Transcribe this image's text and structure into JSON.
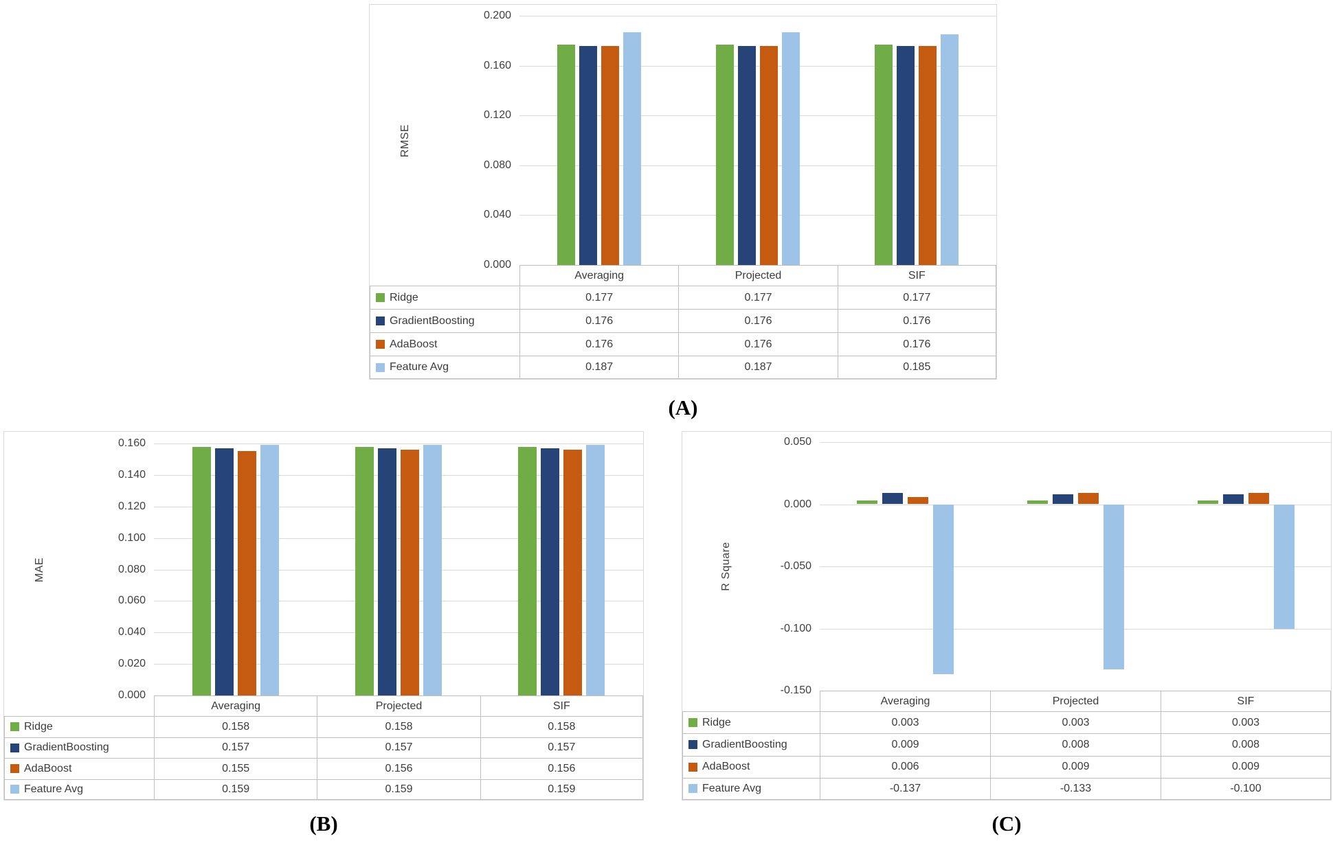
{
  "figure": {
    "panel_count": 3,
    "background": "#FFFFFF"
  },
  "chart_data": [
    {
      "id": "A",
      "type": "bar",
      "panel_label": "(A)",
      "ylabel": "RMSE",
      "ylim": [
        0.0,
        0.2
      ],
      "grid": true,
      "legend_position": "table-left",
      "categories": [
        "Averaging",
        "Projected",
        "SIF"
      ],
      "yticks": [
        {
          "value": 0.0,
          "label": "0.000"
        },
        {
          "value": 0.04,
          "label": "0.040"
        },
        {
          "value": 0.08,
          "label": "0.080"
        },
        {
          "value": 0.12,
          "label": "0.120"
        },
        {
          "value": 0.16,
          "label": "0.160"
        },
        {
          "value": 0.2,
          "label": "0.200"
        }
      ],
      "series": [
        {
          "name": "Ridge",
          "color": "#70AD47",
          "values": [
            0.177,
            0.177,
            0.177
          ]
        },
        {
          "name": "GradientBoosting",
          "color": "#264478",
          "values": [
            0.176,
            0.176,
            0.176
          ]
        },
        {
          "name": "AdaBoost",
          "color": "#C55A11",
          "values": [
            0.176,
            0.176,
            0.176
          ]
        },
        {
          "name": "Feature Avg",
          "color": "#9DC3E6",
          "values": [
            0.187,
            0.187,
            0.185
          ]
        }
      ]
    },
    {
      "id": "B",
      "type": "bar",
      "panel_label": "(B)",
      "ylabel": "MAE",
      "ylim": [
        0.0,
        0.16
      ],
      "grid": true,
      "legend_position": "table-left",
      "categories": [
        "Averaging",
        "Projected",
        "SIF"
      ],
      "yticks": [
        {
          "value": 0.0,
          "label": "0.000"
        },
        {
          "value": 0.02,
          "label": "0.020"
        },
        {
          "value": 0.04,
          "label": "0.040"
        },
        {
          "value": 0.06,
          "label": "0.060"
        },
        {
          "value": 0.08,
          "label": "0.080"
        },
        {
          "value": 0.1,
          "label": "0.100"
        },
        {
          "value": 0.12,
          "label": "0.120"
        },
        {
          "value": 0.14,
          "label": "0.140"
        },
        {
          "value": 0.16,
          "label": "0.160"
        }
      ],
      "series": [
        {
          "name": "Ridge",
          "color": "#70AD47",
          "values": [
            0.158,
            0.158,
            0.158
          ]
        },
        {
          "name": "GradientBoosting",
          "color": "#264478",
          "values": [
            0.157,
            0.157,
            0.157
          ]
        },
        {
          "name": "AdaBoost",
          "color": "#C55A11",
          "values": [
            0.155,
            0.156,
            0.156
          ]
        },
        {
          "name": "Feature Avg",
          "color": "#9DC3E6",
          "values": [
            0.159,
            0.159,
            0.159
          ]
        }
      ]
    },
    {
      "id": "C",
      "type": "bar",
      "panel_label": "(C)",
      "ylabel": "R Square",
      "ylim": [
        -0.15,
        0.05
      ],
      "grid": true,
      "legend_position": "table-left",
      "categories": [
        "Averaging",
        "Projected",
        "SIF"
      ],
      "yticks": [
        {
          "value": 0.05,
          "label": "0.050"
        },
        {
          "value": 0.0,
          "label": "0.000"
        },
        {
          "value": -0.05,
          "label": "-0.050"
        },
        {
          "value": -0.1,
          "label": "-0.100"
        },
        {
          "value": -0.15,
          "label": "-0.150"
        }
      ],
      "series": [
        {
          "name": "Ridge",
          "color": "#70AD47",
          "values": [
            0.003,
            0.003,
            0.003
          ]
        },
        {
          "name": "GradientBoosting",
          "color": "#264478",
          "values": [
            0.009,
            0.008,
            0.008
          ]
        },
        {
          "name": "AdaBoost",
          "color": "#C55A11",
          "values": [
            0.006,
            0.009,
            0.009
          ]
        },
        {
          "name": "Feature Avg",
          "color": "#9DC3E6",
          "values": [
            -0.137,
            -0.133,
            -0.1
          ]
        }
      ]
    }
  ]
}
